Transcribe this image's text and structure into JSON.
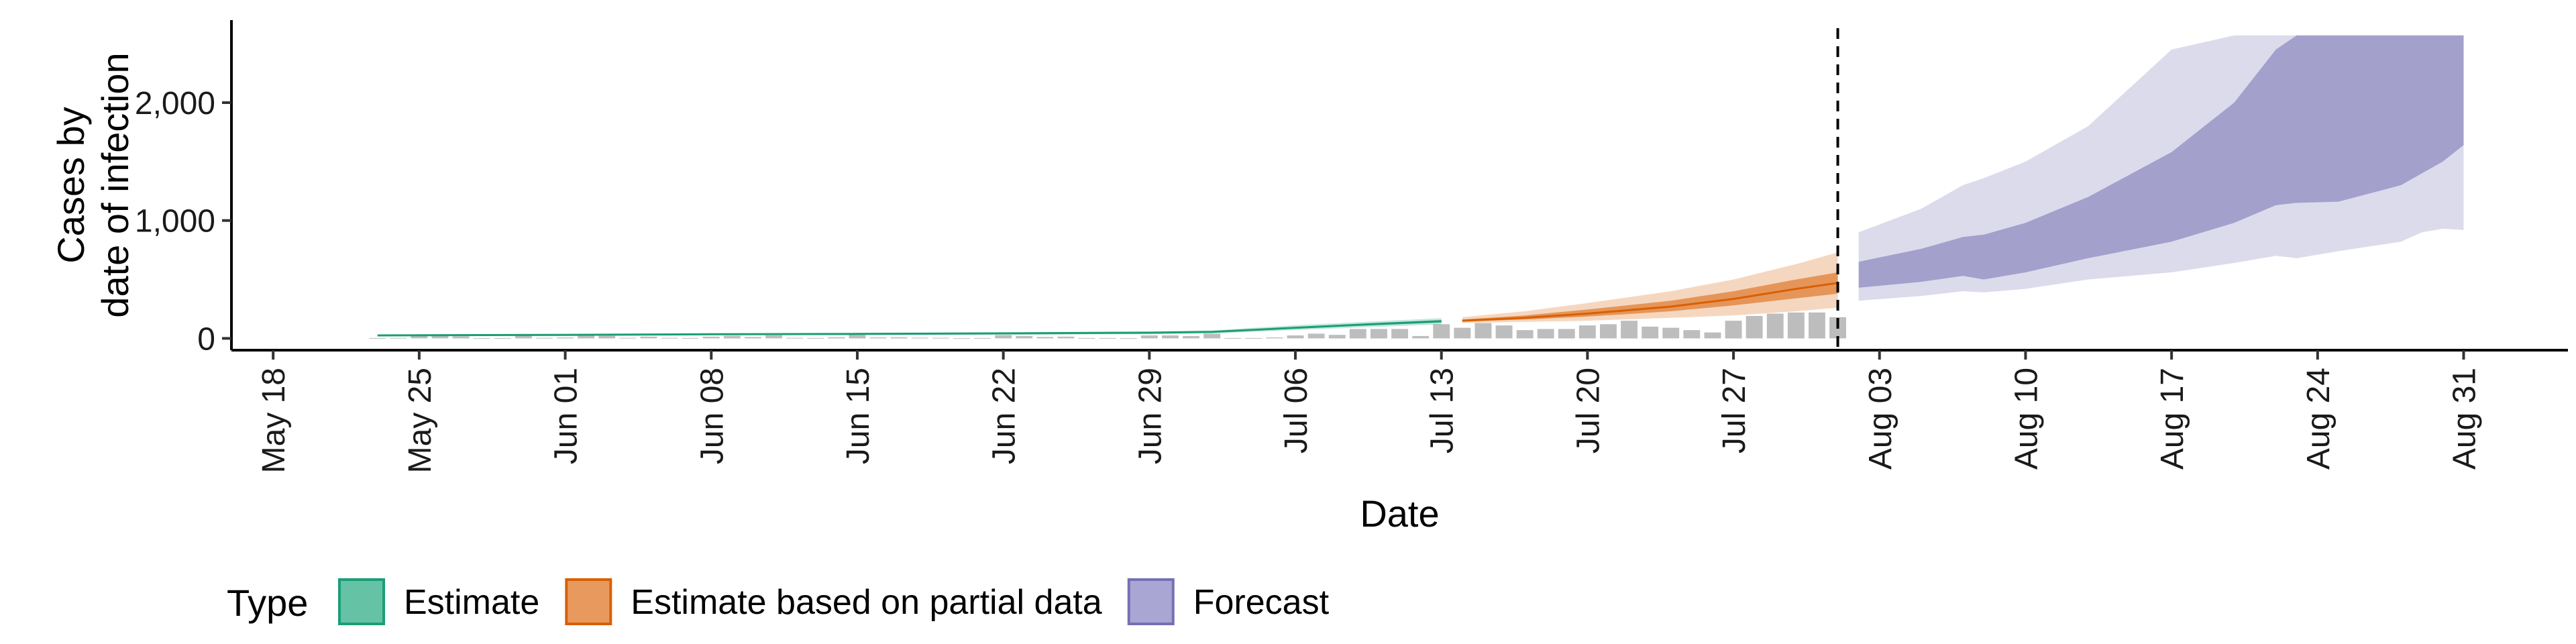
{
  "chart_data": {
    "type": "area",
    "xlabel": "Date",
    "ylabel_lines": [
      "Cases by",
      "date of infection"
    ],
    "x_ticks": [
      "2020-05-18",
      "2020-05-25",
      "2020-06-01",
      "2020-06-08",
      "2020-06-15",
      "2020-06-22",
      "2020-06-29",
      "2020-07-06",
      "2020-07-13",
      "2020-07-20",
      "2020-07-27",
      "2020-08-03",
      "2020-08-10",
      "2020-08-17",
      "2020-08-24",
      "2020-08-31"
    ],
    "x_tick_labels": [
      "May 18",
      "May 25",
      "Jun 01",
      "Jun 08",
      "Jun 15",
      "Jun 22",
      "Jun 29",
      "Jul 06",
      "Jul 13",
      "Jul 20",
      "Jul 27",
      "Aug 03",
      "Aug 10",
      "Aug 17",
      "Aug 24",
      "Aug 31"
    ],
    "y_ticks": [
      0,
      1000,
      2000
    ],
    "y_tick_labels": [
      "0",
      "1,000",
      "2,000"
    ],
    "xlim": [
      "2020-05-16",
      "2020-09-05"
    ],
    "ylim": [
      -100,
      2700
    ],
    "grid": false,
    "legend": {
      "title": "Type",
      "position": "bottom",
      "entries": [
        {
          "label": "Estimate",
          "color": "#66c2a5",
          "border": "#1b9e77"
        },
        {
          "label": "Estimate based on partial data",
          "color": "#e89a5e",
          "border": "#d95f02"
        },
        {
          "label": "Forecast",
          "color": "#a9a6d3",
          "border": "#7570b3"
        }
      ]
    },
    "colors": {
      "estimate": "#1b9e77",
      "partial": "#d95f02",
      "forecast": "#7570b3",
      "bars": "#bdbdbd"
    },
    "vline_date": "2020-08-01",
    "reported_cases": {
      "x": [
        "2020-05-23",
        "2020-05-24",
        "2020-05-25",
        "2020-05-26",
        "2020-05-27",
        "2020-05-28",
        "2020-05-29",
        "2020-05-30",
        "2020-05-31",
        "2020-06-01",
        "2020-06-02",
        "2020-06-03",
        "2020-06-04",
        "2020-06-05",
        "2020-06-06",
        "2020-06-07",
        "2020-06-08",
        "2020-06-09",
        "2020-06-10",
        "2020-06-11",
        "2020-06-12",
        "2020-06-13",
        "2020-06-14",
        "2020-06-15",
        "2020-06-16",
        "2020-06-17",
        "2020-06-18",
        "2020-06-19",
        "2020-06-20",
        "2020-06-21",
        "2020-06-22",
        "2020-06-23",
        "2020-06-24",
        "2020-06-25",
        "2020-06-26",
        "2020-06-27",
        "2020-06-28",
        "2020-06-29",
        "2020-06-30",
        "2020-07-01",
        "2020-07-02",
        "2020-07-03",
        "2020-07-04",
        "2020-07-05",
        "2020-07-06",
        "2020-07-07",
        "2020-07-08",
        "2020-07-09",
        "2020-07-10",
        "2020-07-11",
        "2020-07-12",
        "2020-07-13",
        "2020-07-14",
        "2020-07-15",
        "2020-07-16",
        "2020-07-17",
        "2020-07-18",
        "2020-07-19",
        "2020-07-20",
        "2020-07-21",
        "2020-07-22",
        "2020-07-23",
        "2020-07-24",
        "2020-07-25",
        "2020-07-26",
        "2020-07-27",
        "2020-07-28",
        "2020-07-29",
        "2020-07-30",
        "2020-07-31",
        "2020-08-01"
      ],
      "values": [
        3,
        4,
        25,
        20,
        18,
        2,
        3,
        30,
        5,
        8,
        35,
        22,
        5,
        15,
        4,
        3,
        15,
        22,
        12,
        25,
        5,
        3,
        10,
        30,
        8,
        10,
        6,
        5,
        2,
        3,
        28,
        20,
        12,
        15,
        3,
        3,
        2,
        25,
        25,
        20,
        40,
        3,
        3,
        8,
        25,
        40,
        30,
        80,
        80,
        80,
        20,
        120,
        90,
        130,
        110,
        70,
        80,
        80,
        110,
        120,
        150,
        100,
        90,
        70,
        50,
        150,
        190,
        210,
        220,
        220,
        180
      ]
    },
    "estimate": {
      "x": [
        "2020-05-23",
        "2020-06-01",
        "2020-06-08",
        "2020-06-15",
        "2020-06-22",
        "2020-06-29",
        "2020-07-02",
        "2020-07-06",
        "2020-07-09",
        "2020-07-13"
      ],
      "median": [
        25,
        30,
        35,
        38,
        42,
        48,
        55,
        90,
        115,
        145
      ],
      "lower90": [
        18,
        22,
        26,
        29,
        32,
        36,
        42,
        70,
        92,
        118
      ],
      "upper90": [
        33,
        39,
        44,
        48,
        53,
        60,
        68,
        112,
        138,
        172
      ],
      "lower50": [
        22,
        27,
        31,
        34,
        38,
        43,
        50,
        82,
        106,
        134
      ],
      "upper50": [
        28,
        34,
        39,
        42,
        47,
        54,
        61,
        98,
        124,
        156
      ]
    },
    "partial": {
      "x": [
        "2020-07-14",
        "2020-07-17",
        "2020-07-20",
        "2020-07-24",
        "2020-07-27",
        "2020-07-30",
        "2020-08-01"
      ],
      "median": [
        150,
        175,
        210,
        270,
        335,
        420,
        470
      ],
      "lower90": [
        130,
        140,
        150,
        175,
        195,
        230,
        260
      ],
      "upper90": [
        180,
        230,
        300,
        400,
        500,
        630,
        730
      ],
      "lower50": [
        142,
        160,
        185,
        230,
        280,
        340,
        380
      ],
      "upper50": [
        160,
        195,
        245,
        320,
        400,
        500,
        560
      ]
    },
    "forecast": {
      "x": [
        "2020-08-02",
        "2020-08-05",
        "2020-08-07",
        "2020-08-08",
        "2020-08-10",
        "2020-08-13",
        "2020-08-17",
        "2020-08-20",
        "2020-08-22",
        "2020-08-23",
        "2020-08-25",
        "2020-08-28",
        "2020-08-29",
        "2020-08-30",
        "2020-08-31"
      ],
      "lower90": [
        320,
        360,
        400,
        390,
        420,
        500,
        560,
        640,
        700,
        680,
        740,
        820,
        900,
        930,
        920
      ],
      "upper90": [
        900,
        1100,
        1300,
        1360,
        1500,
        1800,
        2450,
        2570,
        2570,
        2570,
        2570,
        2570,
        2570,
        2570,
        2570
      ],
      "lower50": [
        430,
        480,
        530,
        500,
        560,
        680,
        820,
        980,
        1130,
        1150,
        1160,
        1300,
        1400,
        1500,
        1640
      ],
      "upper50": [
        650,
        760,
        860,
        880,
        980,
        1200,
        1580,
        2000,
        2450,
        2570,
        2570,
        2570,
        2570,
        2570,
        2570
      ]
    }
  }
}
